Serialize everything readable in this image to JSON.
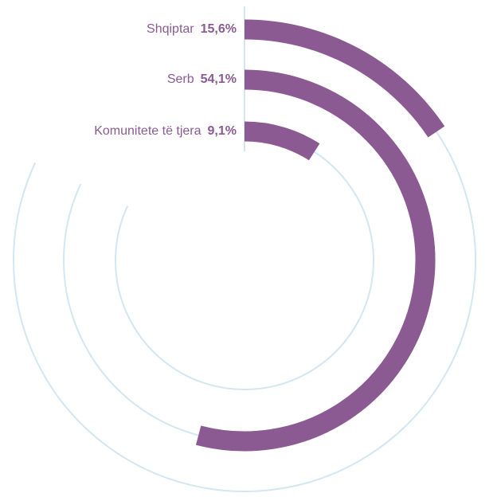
{
  "chart_data": {
    "type": "radial-bar",
    "categories": [
      "Shqiptar",
      "Serb",
      "Komunitete të tjera"
    ],
    "values": [
      15.6,
      54.1,
      9.1
    ],
    "value_labels": [
      "15,6%",
      "54,1%",
      "9,1%"
    ],
    "color": "#8b5a92"
  }
}
